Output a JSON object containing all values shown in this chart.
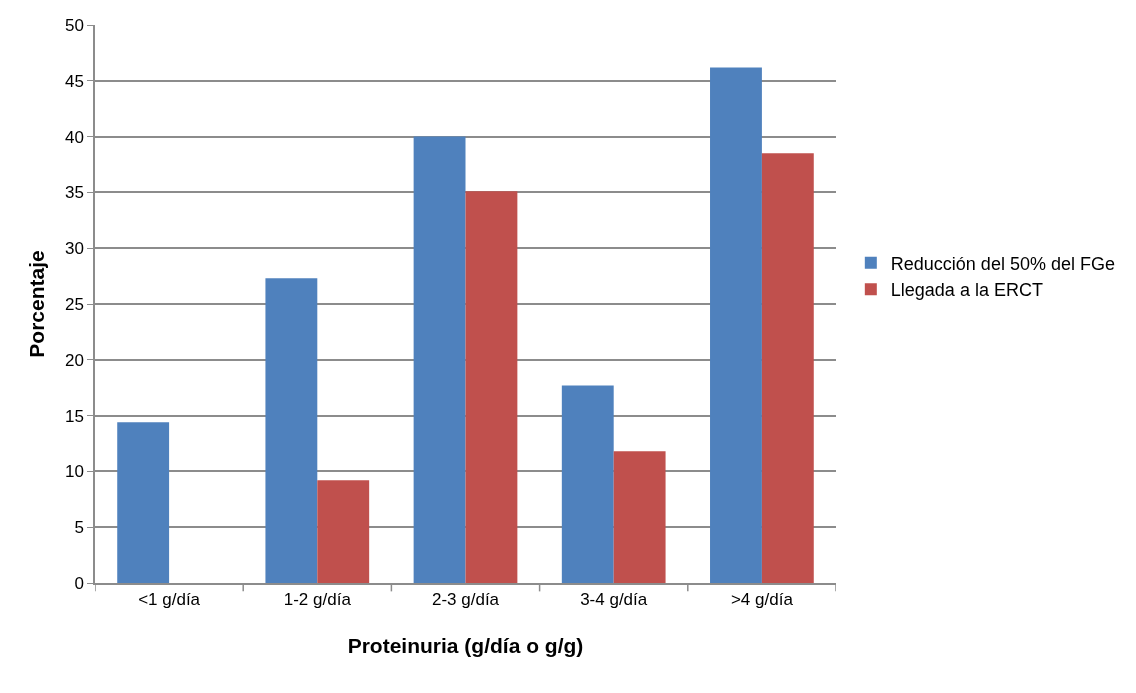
{
  "chart_data": {
    "type": "bar",
    "xlabel": "Proteinuria (g/día o g/g)",
    "ylabel": "Porcentaje",
    "categories": [
      "<1 g/día",
      "1-2 g/día",
      "2-3 g/día",
      "3-4 g/día",
      ">4 g/día"
    ],
    "series": [
      {
        "name": "Reducción del 50% del FGe",
        "color": "#4f81bd",
        "values": [
          14.4,
          27.3,
          40,
          17.7,
          46.2
        ]
      },
      {
        "name": "Llegada a la ERCT",
        "color": "#c0504d",
        "values": [
          null,
          9.2,
          35.1,
          11.8,
          38.5
        ]
      }
    ],
    "ylim": [
      0,
      50
    ],
    "yticks": [
      0,
      5,
      10,
      15,
      20,
      25,
      30,
      35,
      40,
      45,
      50
    ],
    "grid": "y",
    "legend": "right"
  }
}
